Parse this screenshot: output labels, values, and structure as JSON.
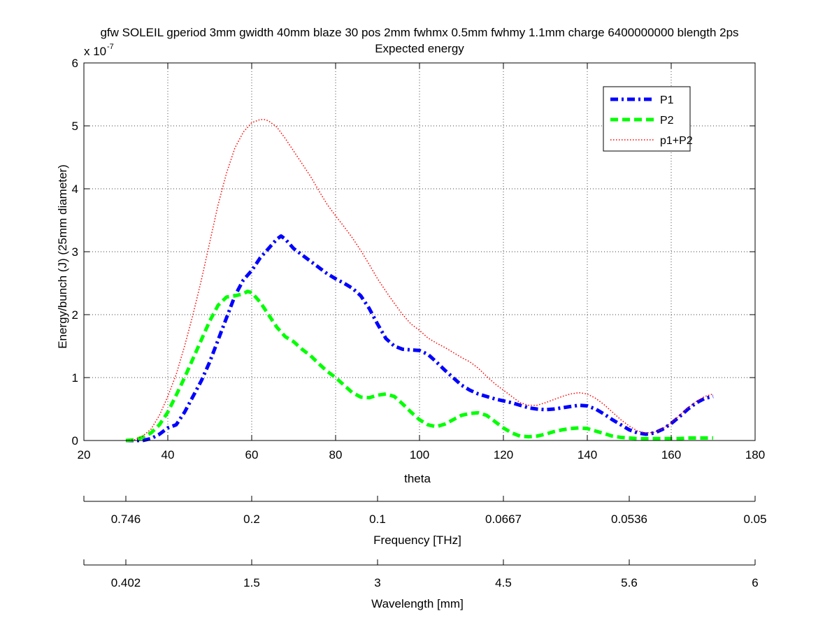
{
  "chart_data": {
    "type": "line",
    "title": "gfw SOLEIL gperiod 3mm gwidth 40mm blaze 30 pos 2mm fwhmx 0.5mm fwhmy 1.1mm charge 6400000000 blength 2ps",
    "subtitle": "Expected energy",
    "xlabel": "theta",
    "ylabel": "Energy/bunch (J) (25mm diameter)",
    "y_exponent_label": "x 10",
    "y_exponent_value": "-7",
    "xlim": [
      20,
      180
    ],
    "ylim": [
      0,
      6
    ],
    "xticks": [
      "20",
      "40",
      "60",
      "80",
      "100",
      "120",
      "140",
      "160",
      "180"
    ],
    "yticks": [
      "0",
      "1",
      "2",
      "3",
      "4",
      "5",
      "6"
    ],
    "grid": true,
    "legend_position": "top-right",
    "secondary_axes": [
      {
        "label": "Frequency [THz]",
        "ticks": [
          {
            "theta": 30,
            "label": "0.746"
          },
          {
            "theta": 60,
            "label": "0.2"
          },
          {
            "theta": 90,
            "label": "0.1"
          },
          {
            "theta": 120,
            "label": "0.0667"
          },
          {
            "theta": 150,
            "label": "0.0536"
          },
          {
            "theta": 180,
            "label": "0.05"
          }
        ]
      },
      {
        "label": "Wavelength [mm]",
        "ticks": [
          {
            "theta": 30,
            "label": "0.402"
          },
          {
            "theta": 60,
            "label": "1.5"
          },
          {
            "theta": 90,
            "label": "3"
          },
          {
            "theta": 120,
            "label": "4.5"
          },
          {
            "theta": 150,
            "label": "5.6"
          },
          {
            "theta": 180,
            "label": "6"
          }
        ]
      }
    ],
    "series": [
      {
        "name": "P1",
        "color": "#0000ff",
        "style": "dashdot",
        "x": [
          30,
          34,
          36,
          38,
          40,
          42,
          44,
          46,
          48,
          50,
          52,
          54,
          56,
          58,
          60,
          62,
          64,
          66,
          67,
          68,
          70,
          72,
          74,
          76,
          78,
          80,
          82,
          84,
          86,
          88,
          90,
          92,
          94,
          96,
          98,
          100,
          102,
          104,
          106,
          108,
          110,
          112,
          114,
          116,
          118,
          120,
          122,
          124,
          126,
          128,
          130,
          132,
          134,
          136,
          138,
          140,
          142,
          144,
          146,
          148,
          150,
          152,
          154,
          156,
          158,
          160,
          162,
          164,
          166,
          168,
          170
        ],
        "y": [
          0.0,
          0.0,
          0.03,
          0.1,
          0.2,
          0.25,
          0.45,
          0.7,
          0.95,
          1.25,
          1.6,
          1.95,
          2.3,
          2.55,
          2.7,
          2.9,
          3.05,
          3.2,
          3.25,
          3.2,
          3.05,
          2.95,
          2.85,
          2.75,
          2.65,
          2.57,
          2.5,
          2.42,
          2.3,
          2.1,
          1.85,
          1.62,
          1.5,
          1.45,
          1.44,
          1.43,
          1.37,
          1.25,
          1.12,
          1.0,
          0.88,
          0.8,
          0.74,
          0.7,
          0.66,
          0.63,
          0.6,
          0.56,
          0.52,
          0.5,
          0.49,
          0.5,
          0.52,
          0.54,
          0.56,
          0.55,
          0.5,
          0.42,
          0.33,
          0.25,
          0.17,
          0.12,
          0.1,
          0.12,
          0.18,
          0.27,
          0.38,
          0.5,
          0.6,
          0.67,
          0.7
        ]
      },
      {
        "name": "P2",
        "color": "#00ff00",
        "style": "dashed",
        "x": [
          30,
          32,
          34,
          36,
          38,
          40,
          42,
          44,
          46,
          48,
          50,
          52,
          54,
          56,
          58,
          59,
          60,
          62,
          64,
          66,
          68,
          70,
          72,
          74,
          76,
          78,
          80,
          82,
          84,
          86,
          88,
          90,
          92,
          94,
          96,
          98,
          100,
          102,
          104,
          106,
          108,
          110,
          112,
          114,
          116,
          118,
          120,
          122,
          124,
          126,
          128,
          130,
          132,
          134,
          136,
          138,
          140,
          142,
          144,
          146,
          148,
          150,
          152,
          154,
          156,
          158,
          160,
          162,
          164,
          166,
          168,
          170
        ],
        "y": [
          0.0,
          0.01,
          0.05,
          0.12,
          0.25,
          0.45,
          0.72,
          1.0,
          1.3,
          1.6,
          1.9,
          2.15,
          2.28,
          2.3,
          2.33,
          2.37,
          2.35,
          2.2,
          2.0,
          1.8,
          1.65,
          1.57,
          1.45,
          1.35,
          1.22,
          1.1,
          1.0,
          0.88,
          0.76,
          0.69,
          0.68,
          0.72,
          0.74,
          0.7,
          0.58,
          0.45,
          0.33,
          0.25,
          0.22,
          0.26,
          0.33,
          0.4,
          0.43,
          0.44,
          0.4,
          0.3,
          0.2,
          0.12,
          0.07,
          0.06,
          0.07,
          0.1,
          0.14,
          0.17,
          0.19,
          0.2,
          0.19,
          0.15,
          0.11,
          0.07,
          0.05,
          0.04,
          0.03,
          0.03,
          0.03,
          0.03,
          0.03,
          0.03,
          0.04,
          0.04,
          0.04,
          0.04
        ]
      },
      {
        "name": "p1+P2",
        "color": "#ff0000",
        "style": "dotted",
        "x": [
          30,
          32,
          34,
          36,
          38,
          40,
          42,
          44,
          46,
          48,
          50,
          52,
          54,
          56,
          58,
          60,
          62,
          63,
          64,
          66,
          68,
          70,
          72,
          74,
          76,
          78,
          80,
          82,
          84,
          86,
          88,
          90,
          92,
          94,
          96,
          98,
          100,
          102,
          104,
          106,
          108,
          110,
          112,
          114,
          116,
          118,
          120,
          122,
          124,
          126,
          128,
          130,
          132,
          134,
          136,
          138,
          140,
          142,
          144,
          146,
          148,
          150,
          152,
          154,
          156,
          158,
          160,
          162,
          164,
          166,
          168,
          170
        ],
        "y": [
          0.0,
          0.01,
          0.07,
          0.18,
          0.4,
          0.7,
          1.05,
          1.5,
          2.0,
          2.55,
          3.15,
          3.75,
          4.25,
          4.65,
          4.9,
          5.05,
          5.1,
          5.1,
          5.08,
          4.98,
          4.8,
          4.6,
          4.4,
          4.2,
          3.97,
          3.75,
          3.57,
          3.4,
          3.22,
          3.02,
          2.8,
          2.57,
          2.37,
          2.18,
          2.0,
          1.85,
          1.75,
          1.63,
          1.55,
          1.48,
          1.4,
          1.32,
          1.25,
          1.15,
          1.02,
          0.9,
          0.8,
          0.7,
          0.6,
          0.56,
          0.56,
          0.6,
          0.65,
          0.7,
          0.74,
          0.76,
          0.74,
          0.67,
          0.57,
          0.45,
          0.33,
          0.23,
          0.15,
          0.12,
          0.13,
          0.19,
          0.28,
          0.4,
          0.52,
          0.62,
          0.7,
          0.74
        ]
      }
    ]
  }
}
